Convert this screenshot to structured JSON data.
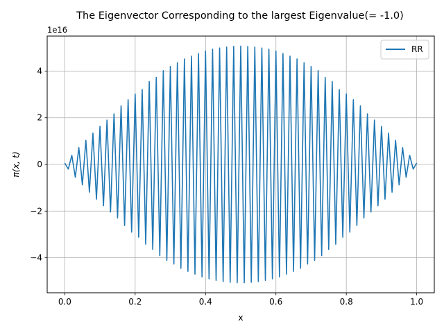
{
  "chart_data": {
    "type": "line",
    "title": "The Eigenvector Corresponding to the largest Eigenvalue(= -1.0)",
    "xlabel": "x",
    "ylabel": "π(x, t)",
    "y_offset_label": "1e16",
    "y_scale": 1e+16,
    "xlim": [
      -0.05,
      1.05
    ],
    "ylim": [
      -5.5,
      5.5
    ],
    "x_ticks": [
      0.0,
      0.2,
      0.4,
      0.6,
      0.8,
      1.0
    ],
    "x_tick_labels": [
      "0.0",
      "0.2",
      "0.4",
      "0.6",
      "0.8",
      "1.0"
    ],
    "y_ticks": [
      -4,
      -2,
      0,
      2,
      4
    ],
    "y_tick_labels": [
      "−4",
      "−2",
      "0",
      "2",
      "4"
    ],
    "grid": true,
    "legend_position": "top-right",
    "series": [
      {
        "name": "RR",
        "color": "#1f77b4",
        "x_start": 0.0,
        "x_end": 1.0,
        "num_points": 101,
        "description_values": "alternating-sign oscillation with envelope peaking near x=0.5",
        "values": [
          0.06,
          -0.2,
          0.39,
          -0.55,
          0.72,
          -0.88,
          1.03,
          -1.19,
          1.34,
          -1.49,
          1.63,
          -1.77,
          1.9,
          -2.04,
          2.17,
          -2.29,
          2.51,
          -2.62,
          2.77,
          -2.9,
          3.02,
          -3.12,
          3.21,
          -3.42,
          3.55,
          -3.64,
          3.73,
          -3.91,
          4.02,
          -4.11,
          4.2,
          -4.27,
          4.36,
          -4.45,
          4.52,
          -4.58,
          4.64,
          -4.7,
          4.75,
          -4.82,
          4.86,
          -4.9,
          4.94,
          -4.97,
          4.99,
          -5.02,
          5.03,
          -5.05,
          5.06,
          -5.07,
          5.07,
          -5.07,
          5.06,
          -5.05,
          5.03,
          -5.02,
          4.99,
          -4.97,
          4.94,
          -4.9,
          4.86,
          -4.82,
          4.75,
          -4.7,
          4.64,
          -4.58,
          4.52,
          -4.45,
          4.36,
          -4.27,
          4.2,
          -4.11,
          4.02,
          -3.91,
          3.73,
          -3.64,
          3.55,
          -3.42,
          3.21,
          -3.12,
          3.02,
          -2.9,
          2.77,
          -2.62,
          2.51,
          -2.29,
          2.17,
          -2.04,
          1.9,
          -1.77,
          1.63,
          -1.49,
          1.34,
          -1.19,
          1.03,
          -0.88,
          0.72,
          -0.55,
          0.39,
          -0.2,
          0.06
        ]
      }
    ]
  }
}
